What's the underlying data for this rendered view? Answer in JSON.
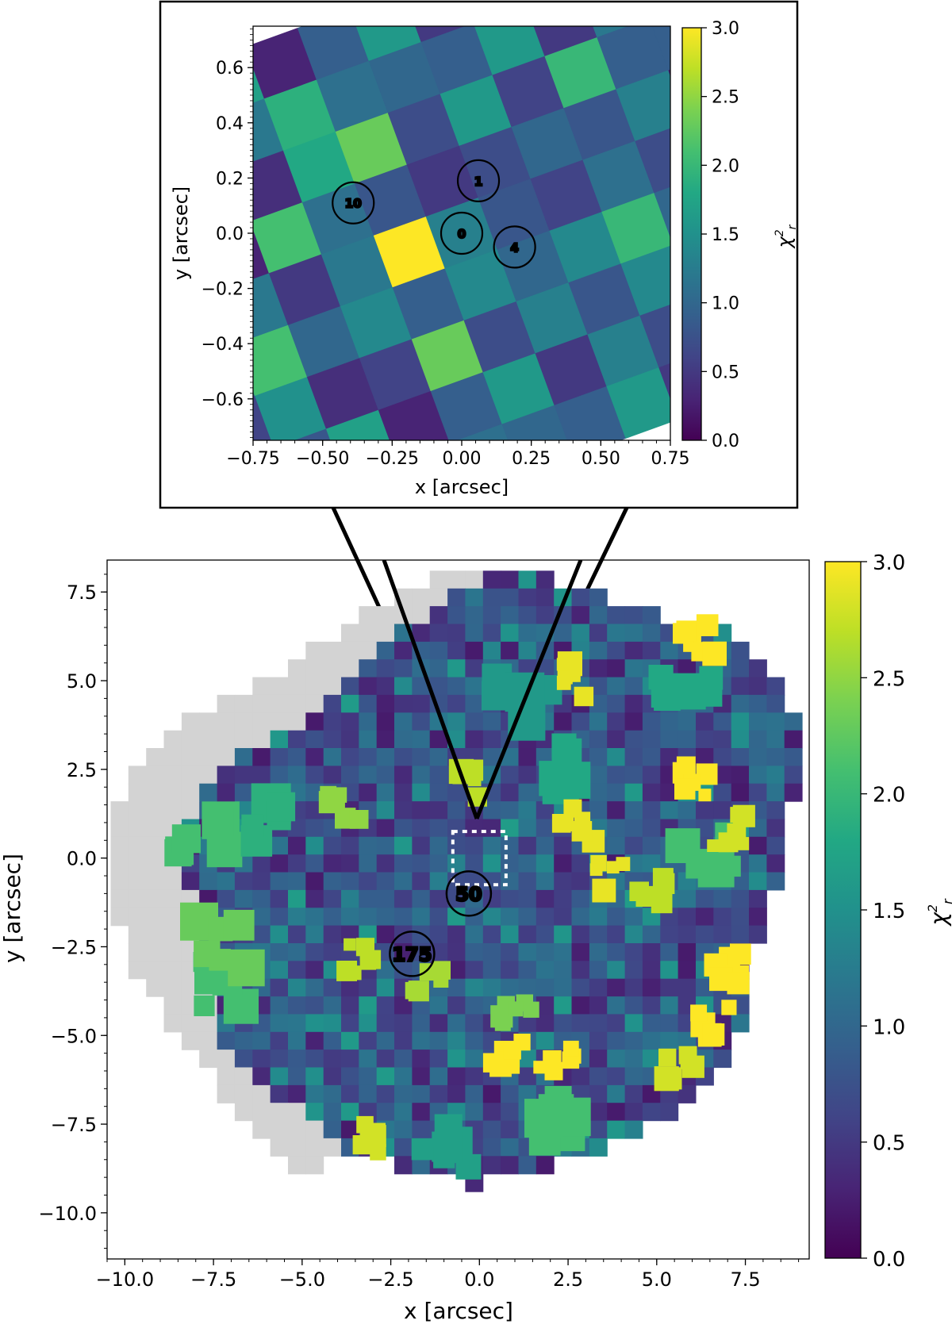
{
  "chart_data": [
    {
      "panel": "inset",
      "type": "heatmap",
      "title": "",
      "xlabel": "x [arcsec]",
      "ylabel": "y [arcsec]",
      "xlim": [
        -0.75,
        0.75
      ],
      "ylim": [
        -0.75,
        0.75
      ],
      "xticks": [
        "−0.75",
        "−0.50",
        "−0.25",
        "0.00",
        "0.25",
        "0.50",
        "0.75"
      ],
      "yticks": [
        "−0.6",
        "−0.4",
        "−0.2",
        "0.0",
        "0.2",
        "0.4",
        "0.6"
      ],
      "colorbar": {
        "label": "χ²r",
        "min": 0.0,
        "max": 3.0,
        "ticks": [
          "0.0",
          "0.5",
          "1.0",
          "1.5",
          "2.0",
          "2.5",
          "3.0"
        ]
      },
      "spaxel_size_arcsec": 0.2,
      "rotation_deg": 20,
      "grid_values": [
        [
          0.6,
          1.2,
          1.9,
          1.1,
          1.0,
          0.9,
          1.6,
          0.5,
          1.2
        ],
        [
          0.9,
          0.4,
          1.8,
          2.3,
          0.7,
          1.6,
          0.6,
          2.0,
          0.9
        ],
        [
          0.3,
          2.1,
          1.1,
          0.8,
          0.5,
          0.7,
          1.0,
          0.8,
          1.3
        ],
        [
          1.2,
          0.5,
          1.2,
          3.0,
          1.3,
          0.8,
          0.6,
          1.1,
          0.7
        ],
        [
          2.1,
          1.0,
          1.4,
          0.9,
          1.4,
          1.0,
          1.4,
          2.0,
          1.0
        ],
        [
          1.5,
          0.4,
          0.6,
          2.3,
          0.7,
          1.3,
          0.8,
          1.4,
          0.6
        ],
        [
          0.8,
          1.7,
          0.3,
          0.9,
          1.6,
          0.5,
          1.3,
          0.7,
          2.5
        ]
      ],
      "markers": [
        {
          "label": "0",
          "x": 0.0,
          "y": 0.0
        },
        {
          "label": "1",
          "x": 0.06,
          "y": 0.19
        },
        {
          "label": "4",
          "x": 0.19,
          "y": -0.05
        },
        {
          "label": "10",
          "x": -0.39,
          "y": 0.11
        }
      ],
      "zoom_target": {
        "xlim": [
          -0.75,
          0.75
        ],
        "ylim": [
          -0.75,
          0.75
        ]
      }
    },
    {
      "panel": "main",
      "type": "heatmap",
      "title": "",
      "xlabel": "x [arcsec]",
      "ylabel": "y [arcsec]",
      "xlim": [
        -10.5,
        9.3
      ],
      "ylim": [
        -11.3,
        8.4
      ],
      "xticks": [
        "−10.0",
        "−7.5",
        "−5.0",
        "−2.5",
        "0.0",
        "2.5",
        "5.0",
        "7.5"
      ],
      "yticks": [
        "−10.0",
        "−7.5",
        "−5.0",
        "−2.5",
        "0.0",
        "2.5",
        "5.0",
        "7.5"
      ],
      "colorbar": {
        "label": "χ²r",
        "min": 0.0,
        "max": 3.0,
        "ticks": [
          "0.0",
          "0.5",
          "1.0",
          "1.5",
          "2.0",
          "2.5",
          "3.0"
        ]
      },
      "masked_region_color": "#d3d3d3",
      "markers": [
        {
          "label": "50",
          "x": -0.3,
          "y": -1.0
        },
        {
          "label": "175",
          "x": -1.9,
          "y": -2.7
        }
      ],
      "hot_spots": [
        {
          "x": 6.2,
          "y": 6.1,
          "v": 3.0
        },
        {
          "x": 2.8,
          "y": 5.0,
          "v": 2.9
        },
        {
          "x": 6.0,
          "y": 2.2,
          "v": 3.0
        },
        {
          "x": 7.0,
          "y": 0.8,
          "v": 2.8
        },
        {
          "x": 7.1,
          "y": -3.2,
          "v": 3.0
        },
        {
          "x": 6.6,
          "y": -4.6,
          "v": 3.0
        },
        {
          "x": 5.7,
          "y": -5.8,
          "v": 2.8
        },
        {
          "x": 0.8,
          "y": -5.5,
          "v": 3.0
        },
        {
          "x": 2.2,
          "y": -5.6,
          "v": 3.0
        },
        {
          "x": -3.4,
          "y": -2.9,
          "v": 2.7
        },
        {
          "x": -1.5,
          "y": -3.4,
          "v": 2.6
        },
        {
          "x": 3.6,
          "y": -0.6,
          "v": 2.9
        },
        {
          "x": 2.8,
          "y": 0.9,
          "v": 2.9
        },
        {
          "x": -3.8,
          "y": 1.4,
          "v": 2.5
        },
        {
          "x": -3.2,
          "y": -8.0,
          "v": 2.8
        },
        {
          "x": -0.5,
          "y": 2.2,
          "v": 2.7
        },
        {
          "x": 1.0,
          "y": -4.4,
          "v": 2.4
        },
        {
          "x": 5.0,
          "y": -0.8,
          "v": 2.7
        }
      ],
      "green_blobs": [
        {
          "x": -7.8,
          "y": 0.4,
          "v": 2.1
        },
        {
          "x": -7.4,
          "y": -3.6,
          "v": 2.1
        },
        {
          "x": -7.2,
          "y": -2.4,
          "v": 2.3
        },
        {
          "x": -6.3,
          "y": 1.2,
          "v": 1.9
        },
        {
          "x": 2.5,
          "y": -7.4,
          "v": 2.1
        },
        {
          "x": 5.8,
          "y": 4.5,
          "v": 1.8
        },
        {
          "x": 2.7,
          "y": 2.7,
          "v": 1.8
        },
        {
          "x": 6.5,
          "y": 0.2,
          "v": 2.1
        },
        {
          "x": -1.0,
          "y": -8.0,
          "v": 1.7
        },
        {
          "x": 1.2,
          "y": 4.6,
          "v": 1.6
        }
      ],
      "zoom_box": {
        "xlim": [
          -0.75,
          0.75
        ],
        "ylim": [
          -0.75,
          0.75
        ]
      }
    }
  ]
}
